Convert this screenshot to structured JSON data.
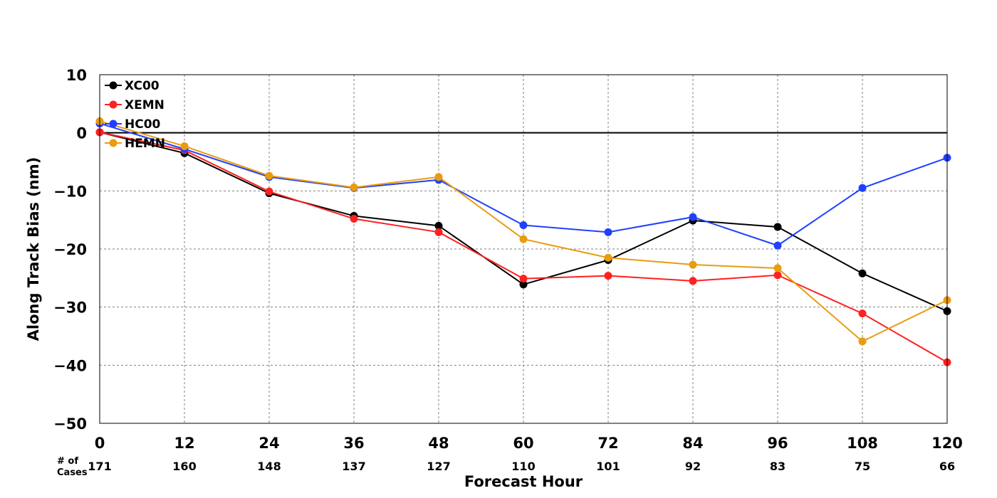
{
  "chart_data": {
    "type": "line",
    "title": "",
    "xlabel": "Forecast Hour",
    "ylabel": "Along Track Bias (nm)",
    "x": [
      0,
      12,
      24,
      36,
      48,
      60,
      72,
      84,
      96,
      108,
      120
    ],
    "xlim": [
      0,
      120
    ],
    "ylim": [
      -50,
      10
    ],
    "yticks": [
      10,
      0,
      -10,
      -20,
      -30,
      -40,
      -50
    ],
    "ytick_labels": [
      "10",
      "0",
      "−10",
      "−20",
      "−30",
      "−40",
      "−50"
    ],
    "grid": true,
    "zero_line": true,
    "legend_position": "top-left",
    "cases_label": [
      "# of",
      "Cases"
    ],
    "cases": [
      171,
      160,
      148,
      137,
      127,
      110,
      101,
      92,
      83,
      75,
      66
    ],
    "series": [
      {
        "name": "XC00",
        "color": "#000000",
        "values": [
          0.1,
          -3.5,
          -10.4,
          -14.3,
          -16.0,
          -26.1,
          -21.9,
          -15.1,
          -16.2,
          -24.2,
          -30.7
        ]
      },
      {
        "name": "XEMN",
        "color": "#ff2020",
        "values": [
          0.1,
          -3.0,
          -10.1,
          -14.8,
          -17.1,
          -25.1,
          -24.6,
          -25.5,
          -24.5,
          -31.1,
          -39.5
        ]
      },
      {
        "name": "HC00",
        "color": "#2040ff",
        "values": [
          1.6,
          -2.8,
          -7.6,
          -9.5,
          -8.1,
          -15.9,
          -17.1,
          -14.5,
          -19.4,
          -9.5,
          -4.3
        ]
      },
      {
        "name": "HEMN",
        "color": "#e89c10",
        "values": [
          2.0,
          -2.3,
          -7.4,
          -9.4,
          -7.6,
          -18.3,
          -21.5,
          -22.7,
          -23.3,
          -35.9,
          -28.8
        ]
      }
    ]
  }
}
